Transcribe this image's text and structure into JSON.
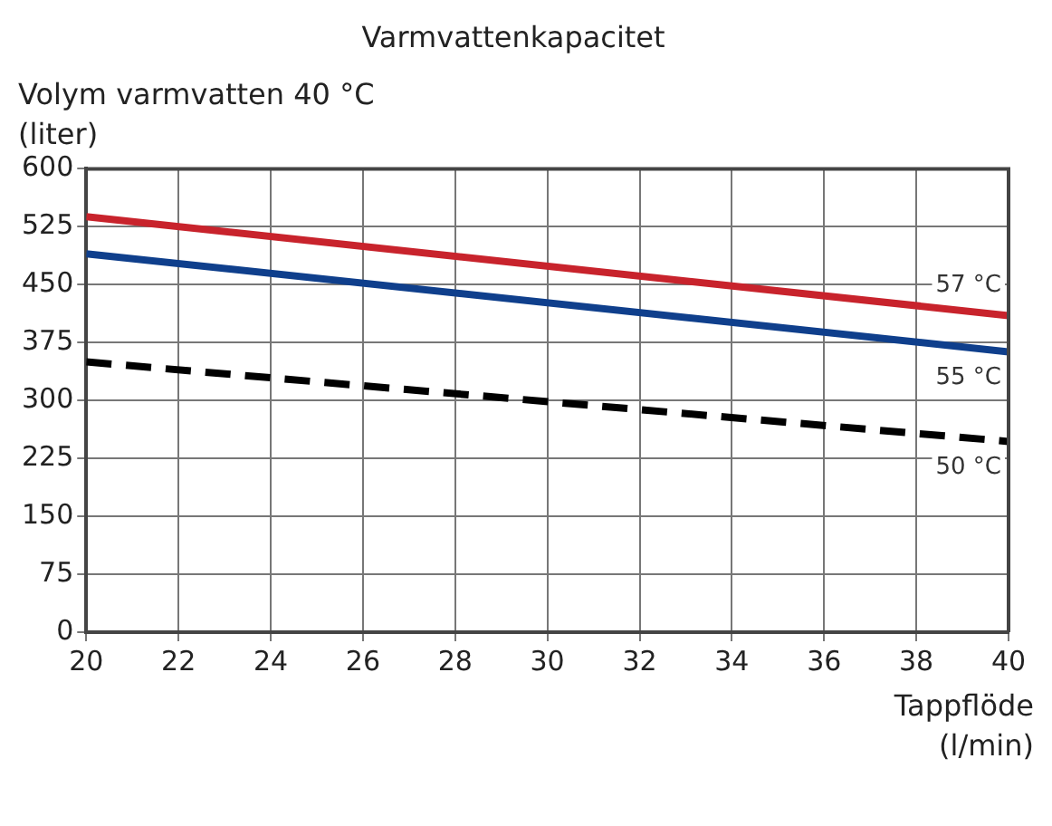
{
  "chart_data": {
    "type": "line",
    "title": "Varmvattenkapacitet",
    "xlabel": "Tappflöde (l/min)",
    "ylabel": "Volym varmvatten 40 °C (liter)",
    "x": [
      20,
      40
    ],
    "xlim": [
      20,
      40
    ],
    "xticks": [
      20,
      22,
      24,
      26,
      28,
      30,
      32,
      34,
      36,
      38,
      40
    ],
    "ylim": [
      0,
      600
    ],
    "yticks": [
      0,
      75,
      150,
      225,
      300,
      375,
      450,
      525,
      600
    ],
    "grid": true,
    "legend": false,
    "marker": "none",
    "series": [
      {
        "name": "57 °C",
        "color": "#c8232c",
        "values": [
          538,
          410
        ],
        "line_style": "solid"
      },
      {
        "name": "55 °C",
        "color": "#0f3f8c",
        "values": [
          490,
          363
        ],
        "line_style": "solid"
      },
      {
        "name": "50 °C",
        "color": "#000000",
        "values": [
          350,
          247
        ],
        "line_style": "dashed"
      }
    ]
  }
}
